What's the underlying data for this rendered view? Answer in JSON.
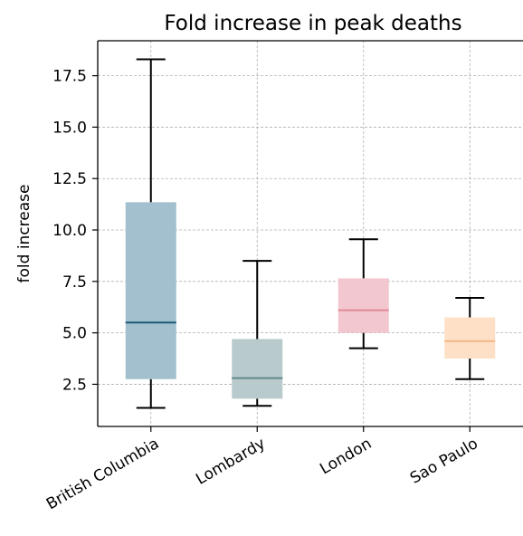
{
  "chart_data": {
    "type": "box",
    "title": "Fold increase in peak deaths",
    "xlabel": "",
    "ylabel": "fold increase",
    "ylim": [
      0.45,
      19.2
    ],
    "yticks": [
      2.5,
      5.0,
      7.5,
      10.0,
      12.5,
      15.0,
      17.5
    ],
    "ytick_labels": [
      "2.5",
      "5.0",
      "7.5",
      "10.0",
      "12.5",
      "15.0",
      "17.5"
    ],
    "grid": true,
    "categories": [
      "British Columbia",
      "Lombardy",
      "London",
      "Sao Paulo"
    ],
    "boxes": [
      {
        "name": "British Columbia",
        "whisker_low": 1.35,
        "q1": 2.75,
        "median": 5.5,
        "q3": 11.35,
        "whisker_high": 18.3
      },
      {
        "name": "Lombardy",
        "whisker_low": 1.45,
        "q1": 1.8,
        "median": 2.8,
        "q3": 4.7,
        "whisker_high": 8.5
      },
      {
        "name": "London",
        "whisker_low": 4.25,
        "q1": 5.0,
        "median": 6.1,
        "q3": 7.65,
        "whisker_high": 9.55
      },
      {
        "name": "Sao Paulo",
        "whisker_low": 2.75,
        "q1": 3.75,
        "median": 4.6,
        "q3": 5.75,
        "whisker_high": 6.7
      }
    ],
    "colors": {
      "box_fills": [
        "#a2c0cd",
        "#b9cacd",
        "#f2c7cf",
        "#fde0c6"
      ],
      "median_lines": [
        "#1b5a7a",
        "#5f8a8a",
        "#e08898",
        "#f3b888"
      ],
      "whisker": "#000000",
      "grid": "#b0b0b0"
    }
  }
}
